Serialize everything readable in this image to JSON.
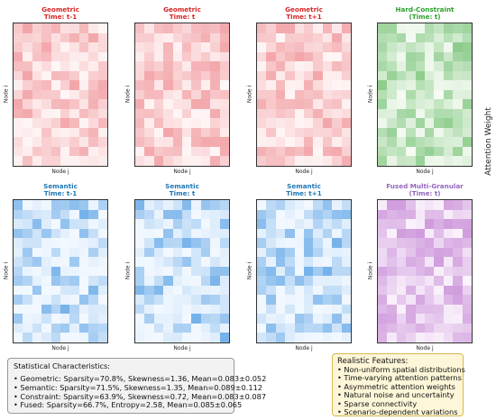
{
  "colorbar_label": "Attention Weight",
  "chart_data": [
    {
      "type": "heatmap",
      "title_line1": "Geometric",
      "title_line2": "Time: t-1",
      "xlabel": "Node j",
      "ylabel": "Node i",
      "title_color": "#d62728",
      "palette": "red",
      "mean": 0.083,
      "sparsity": 0.708
    },
    {
      "type": "heatmap",
      "title_line1": "Geometric",
      "title_line2": "Time: t",
      "xlabel": "Node j",
      "ylabel": "Node i",
      "title_color": "#d62728",
      "palette": "red",
      "mean": 0.083,
      "sparsity": 0.708
    },
    {
      "type": "heatmap",
      "title_line1": "Geometric",
      "title_line2": "Time: t+1",
      "xlabel": "Node j",
      "ylabel": "Node i",
      "title_color": "#d62728",
      "palette": "red",
      "mean": 0.083,
      "sparsity": 0.708
    },
    {
      "type": "heatmap",
      "title_line1": "Hard-Constraint",
      "title_line2": "(Time: t)",
      "xlabel": "Node j",
      "ylabel": "Node i",
      "title_color": "#2ca02c",
      "palette": "green",
      "mean": 0.083,
      "sparsity": 0.639
    },
    {
      "type": "heatmap",
      "title_line1": "Semantic",
      "title_line2": "Time: t-1",
      "xlabel": "Node j",
      "ylabel": "Node i",
      "title_color": "#1f77b4",
      "palette": "blue",
      "mean": 0.089,
      "sparsity": 0.715
    },
    {
      "type": "heatmap",
      "title_line1": "Semantic",
      "title_line2": "Time: t",
      "xlabel": "Node j",
      "ylabel": "Node i",
      "title_color": "#1f77b4",
      "palette": "blue",
      "mean": 0.089,
      "sparsity": 0.715
    },
    {
      "type": "heatmap",
      "title_line1": "Semantic",
      "title_line2": "Time: t+1",
      "xlabel": "Node j",
      "ylabel": "Node i",
      "title_color": "#1f77b4",
      "palette": "blue",
      "mean": 0.089,
      "sparsity": 0.715
    },
    {
      "type": "heatmap",
      "title_line1": "Fused Multi-Granular",
      "title_line2": "(Time: t)",
      "xlabel": "Node j",
      "ylabel": "Node i",
      "title_color": "#9467bd",
      "palette": "purple",
      "mean": 0.085,
      "sparsity": 0.667
    }
  ],
  "stats": {
    "heading": "Statistical Characteristics:",
    "lines": [
      "• Geometric: Sparsity=70.8%, Skewness=1.36, Mean=0.083±0.052",
      "• Semantic: Sparsity=71.5%, Skewness=1.35, Mean=0.089±0.112",
      "• Constraint: Sparsity=63.9%, Skewness=0.72, Mean=0.083±0.087",
      "• Fused: Sparsity=66.7%, Entropy=2.58, Mean=0.085±0.065"
    ]
  },
  "features": {
    "heading": "Realistic Features:",
    "lines": [
      "• Non-uniform spatial distributions",
      "• Time-varying attention patterns",
      "• Asymmetric attention weights",
      "• Natural noise and uncertainty",
      "• Sparse connectivity",
      "• Scenario-dependent variations"
    ]
  }
}
